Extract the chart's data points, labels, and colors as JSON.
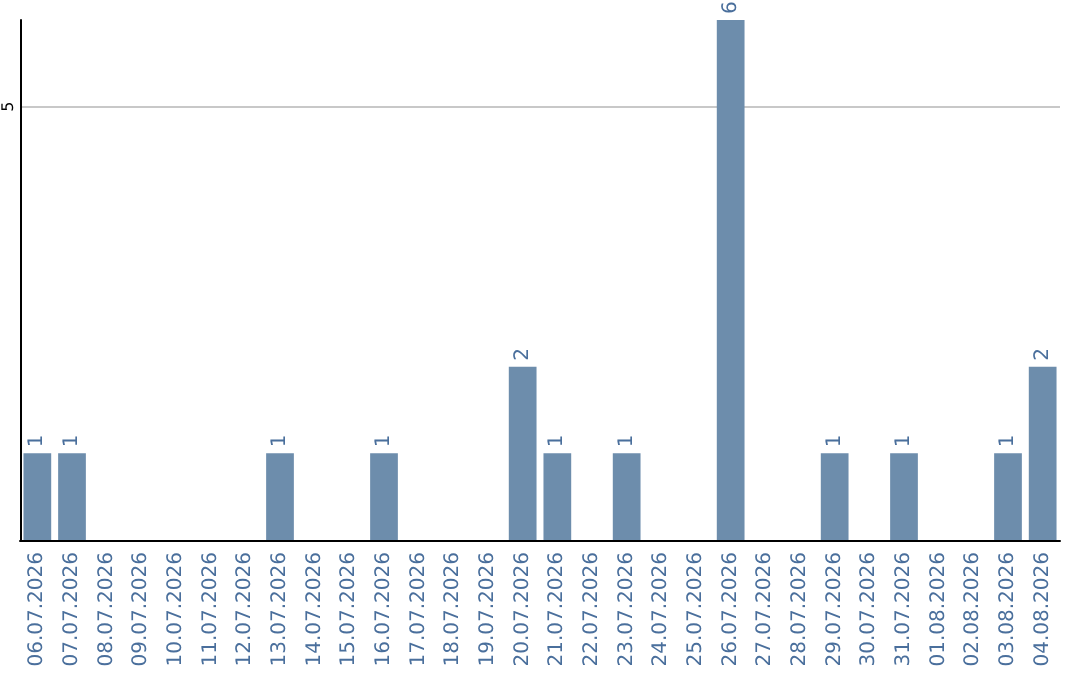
{
  "chart_data": {
    "type": "bar",
    "categories": [
      "06.07.2026",
      "07.07.2026",
      "08.07.2026",
      "09.07.2026",
      "10.07.2026",
      "11.07.2026",
      "12.07.2026",
      "13.07.2026",
      "14.07.2026",
      "15.07.2026",
      "16.07.2026",
      "17.07.2026",
      "18.07.2026",
      "19.07.2026",
      "20.07.2026",
      "21.07.2026",
      "22.07.2026",
      "23.07.2026",
      "24.07.2026",
      "25.07.2026",
      "26.07.2026",
      "27.07.2026",
      "28.07.2026",
      "29.07.2026",
      "30.07.2026",
      "31.07.2026",
      "01.08.2026",
      "02.08.2026",
      "03.08.2026",
      "04.08.2026"
    ],
    "values": [
      1,
      1,
      0,
      0,
      0,
      0,
      0,
      1,
      0,
      0,
      1,
      0,
      0,
      0,
      2,
      1,
      0,
      1,
      0,
      0,
      6,
      0,
      0,
      1,
      0,
      1,
      0,
      0,
      1,
      2
    ],
    "value_labels": [
      "1",
      "1",
      null,
      null,
      null,
      null,
      null,
      "1",
      null,
      null,
      "1",
      null,
      null,
      null,
      "2",
      "1",
      null,
      "1",
      null,
      null,
      "6",
      null,
      null,
      "1",
      null,
      "1",
      null,
      null,
      "1",
      "2"
    ],
    "color": "#6d8dac",
    "ylim": [
      0,
      6
    ],
    "yticks": [
      5
    ],
    "grid": "y"
  }
}
